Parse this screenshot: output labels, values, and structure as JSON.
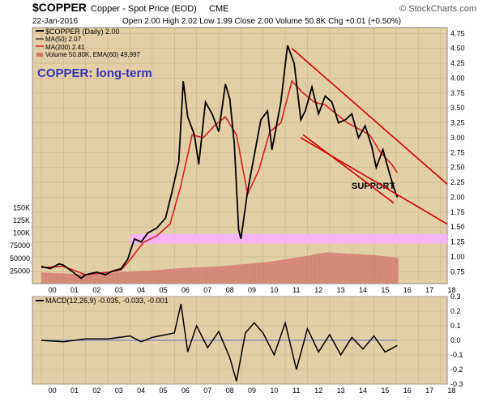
{
  "header": {
    "symbol": "$COPPER",
    "name": "Copper - Spot Price (EOD)",
    "exchange": "CME",
    "date": "22-Jan-2016",
    "quote": "Open 2.00  High 2.02  Low 1.99  Close 2.00  Volume 50.8K  Chg +0.01 (+0.50%)",
    "watermark": "© StockCharts.com"
  },
  "colors": {
    "panel_bg": "#e3cfa6",
    "grid": "#c8b28a",
    "price": "#000000",
    "ma200": "#d62020",
    "trendline": "#d00000",
    "support_band": "#f7b6f3",
    "volume": "#d27a6e",
    "annotation": "#3333bb"
  },
  "annotations": {
    "title": "COPPER: long-term",
    "support": "SUPPORT"
  },
  "legend": [
    "$COPPER (Daily) 2.00",
    "MA(50) 2.07",
    "MA(200) 2.41",
    "Volume 50.80K, EMA(60) 49,997"
  ],
  "macd": {
    "label": "MACD(12,26,9) -0.035, -0.033, -0.001",
    "ticks": [
      "0.3",
      "0.2",
      "0.1",
      "0.0",
      "-0.1",
      "-0.2",
      "-0.3"
    ],
    "ylim": [
      -0.3,
      0.3
    ],
    "series": [
      {
        "x": 2000,
        "y": 0.0
      },
      {
        "x": 2001,
        "y": -0.01
      },
      {
        "x": 2002,
        "y": 0.01
      },
      {
        "x": 2003,
        "y": 0.01
      },
      {
        "x": 2004,
        "y": 0.03
      },
      {
        "x": 2004.5,
        "y": -0.01
      },
      {
        "x": 2005,
        "y": 0.02
      },
      {
        "x": 2006,
        "y": 0.05
      },
      {
        "x": 2006.3,
        "y": 0.25
      },
      {
        "x": 2006.6,
        "y": -0.08
      },
      {
        "x": 2007,
        "y": 0.1
      },
      {
        "x": 2007.5,
        "y": -0.05
      },
      {
        "x": 2008,
        "y": 0.06
      },
      {
        "x": 2008.5,
        "y": -0.12
      },
      {
        "x": 2008.8,
        "y": -0.28
      },
      {
        "x": 2009.2,
        "y": 0.05
      },
      {
        "x": 2009.6,
        "y": 0.12
      },
      {
        "x": 2010,
        "y": 0.05
      },
      {
        "x": 2010.5,
        "y": -0.1
      },
      {
        "x": 2011,
        "y": 0.12
      },
      {
        "x": 2011.5,
        "y": -0.2
      },
      {
        "x": 2012,
        "y": 0.08
      },
      {
        "x": 2012.5,
        "y": -0.08
      },
      {
        "x": 2013,
        "y": 0.04
      },
      {
        "x": 2013.5,
        "y": -0.1
      },
      {
        "x": 2014,
        "y": 0.02
      },
      {
        "x": 2014.5,
        "y": -0.06
      },
      {
        "x": 2015,
        "y": 0.03
      },
      {
        "x": 2015.5,
        "y": -0.08
      },
      {
        "x": 2016.05,
        "y": -0.035
      }
    ]
  },
  "chart_data": {
    "type": "line",
    "x_ticks": [
      "00",
      "01",
      "02",
      "03",
      "04",
      "05",
      "06",
      "07",
      "08",
      "09",
      "10",
      "11",
      "12",
      "13",
      "14",
      "15",
      "16",
      "17",
      "18"
    ],
    "xlim": [
      1999.6,
      2018.3
    ],
    "price_ticks": [
      "4.75",
      "4.50",
      "4.25",
      "4.00",
      "3.75",
      "3.50",
      "3.25",
      "3.00",
      "2.75",
      "2.50",
      "2.25",
      "2.00",
      "1.75",
      "1.50",
      "1.25",
      "1.00",
      "0.75"
    ],
    "price_ylim": [
      0.55,
      4.85
    ],
    "volume_ticks": [
      "150K",
      "125K",
      "100K",
      "75000",
      "50000",
      "25000"
    ],
    "volume_ylim": [
      0,
      160000
    ],
    "support_band": [
      1.22,
      1.38
    ],
    "series": [
      {
        "name": "$COPPER (Daily)",
        "points": [
          [
            2000.0,
            0.84
          ],
          [
            2000.4,
            0.8
          ],
          [
            2000.8,
            0.88
          ],
          [
            2001.0,
            0.86
          ],
          [
            2001.4,
            0.75
          ],
          [
            2001.8,
            0.64
          ],
          [
            2002.0,
            0.7
          ],
          [
            2002.5,
            0.74
          ],
          [
            2002.9,
            0.7
          ],
          [
            2003.2,
            0.76
          ],
          [
            2003.6,
            0.8
          ],
          [
            2003.9,
            0.96
          ],
          [
            2004.2,
            1.3
          ],
          [
            2004.5,
            1.25
          ],
          [
            2004.8,
            1.4
          ],
          [
            2005.2,
            1.48
          ],
          [
            2005.6,
            1.65
          ],
          [
            2005.9,
            2.1
          ],
          [
            2006.2,
            2.6
          ],
          [
            2006.4,
            3.95
          ],
          [
            2006.6,
            3.35
          ],
          [
            2006.9,
            3.05
          ],
          [
            2007.1,
            2.55
          ],
          [
            2007.4,
            3.6
          ],
          [
            2007.7,
            3.4
          ],
          [
            2008.0,
            3.1
          ],
          [
            2008.3,
            3.9
          ],
          [
            2008.5,
            3.65
          ],
          [
            2008.7,
            2.9
          ],
          [
            2008.9,
            1.45
          ],
          [
            2009.0,
            1.3
          ],
          [
            2009.3,
            2.1
          ],
          [
            2009.6,
            2.7
          ],
          [
            2009.9,
            3.3
          ],
          [
            2010.2,
            3.45
          ],
          [
            2010.4,
            2.8
          ],
          [
            2010.8,
            3.6
          ],
          [
            2011.1,
            4.55
          ],
          [
            2011.4,
            4.25
          ],
          [
            2011.7,
            3.3
          ],
          [
            2011.9,
            3.45
          ],
          [
            2012.2,
            3.85
          ],
          [
            2012.5,
            3.4
          ],
          [
            2012.8,
            3.7
          ],
          [
            2013.1,
            3.6
          ],
          [
            2013.4,
            3.25
          ],
          [
            2013.7,
            3.3
          ],
          [
            2014.0,
            3.4
          ],
          [
            2014.3,
            3.0
          ],
          [
            2014.6,
            3.2
          ],
          [
            2014.9,
            2.85
          ],
          [
            2015.1,
            2.5
          ],
          [
            2015.4,
            2.8
          ],
          [
            2015.7,
            2.4
          ],
          [
            2015.9,
            2.15
          ],
          [
            2016.05,
            2.0
          ]
        ]
      },
      {
        "name": "MA(200)",
        "points": [
          [
            2000.0,
            0.82
          ],
          [
            2001.0,
            0.84
          ],
          [
            2002.0,
            0.7
          ],
          [
            2003.0,
            0.74
          ],
          [
            2003.6,
            0.78
          ],
          [
            2004.0,
            0.95
          ],
          [
            2004.6,
            1.24
          ],
          [
            2005.2,
            1.35
          ],
          [
            2005.8,
            1.55
          ],
          [
            2006.3,
            2.2
          ],
          [
            2006.8,
            3.05
          ],
          [
            2007.3,
            3.0
          ],
          [
            2007.8,
            3.2
          ],
          [
            2008.3,
            3.35
          ],
          [
            2008.8,
            3.05
          ],
          [
            2009.3,
            2.05
          ],
          [
            2009.8,
            2.45
          ],
          [
            2010.3,
            3.1
          ],
          [
            2010.8,
            3.25
          ],
          [
            2011.3,
            3.95
          ],
          [
            2011.8,
            3.75
          ],
          [
            2012.3,
            3.6
          ],
          [
            2012.8,
            3.55
          ],
          [
            2013.3,
            3.4
          ],
          [
            2013.8,
            3.25
          ],
          [
            2014.3,
            3.15
          ],
          [
            2014.8,
            3.05
          ],
          [
            2015.3,
            2.75
          ],
          [
            2015.8,
            2.55
          ],
          [
            2016.05,
            2.41
          ]
        ]
      },
      {
        "name": "Volume",
        "points": [
          [
            2000.0,
            22000
          ],
          [
            2001.0,
            20000
          ],
          [
            2002.0,
            18000
          ],
          [
            2003.0,
            21000
          ],
          [
            2004.0,
            24000
          ],
          [
            2005.0,
            26000
          ],
          [
            2006.0,
            30000
          ],
          [
            2007.0,
            32000
          ],
          [
            2008.0,
            34000
          ],
          [
            2009.0,
            38000
          ],
          [
            2010.0,
            42000
          ],
          [
            2011.0,
            48000
          ],
          [
            2012.0,
            55000
          ],
          [
            2012.8,
            62000
          ],
          [
            2013.5,
            60000
          ],
          [
            2014.2,
            58000
          ],
          [
            2015.0,
            56000
          ],
          [
            2016.05,
            50800
          ]
        ]
      }
    ],
    "trendlines": [
      {
        "from": [
          2011.3,
          4.5
        ],
        "to": [
          2018.3,
          2.22
        ]
      },
      {
        "from": [
          2011.7,
          3.0
        ],
        "to": [
          2018.3,
          1.55
        ]
      },
      {
        "from": [
          2011.8,
          3.05
        ],
        "to": [
          2015.9,
          1.9
        ]
      }
    ]
  }
}
